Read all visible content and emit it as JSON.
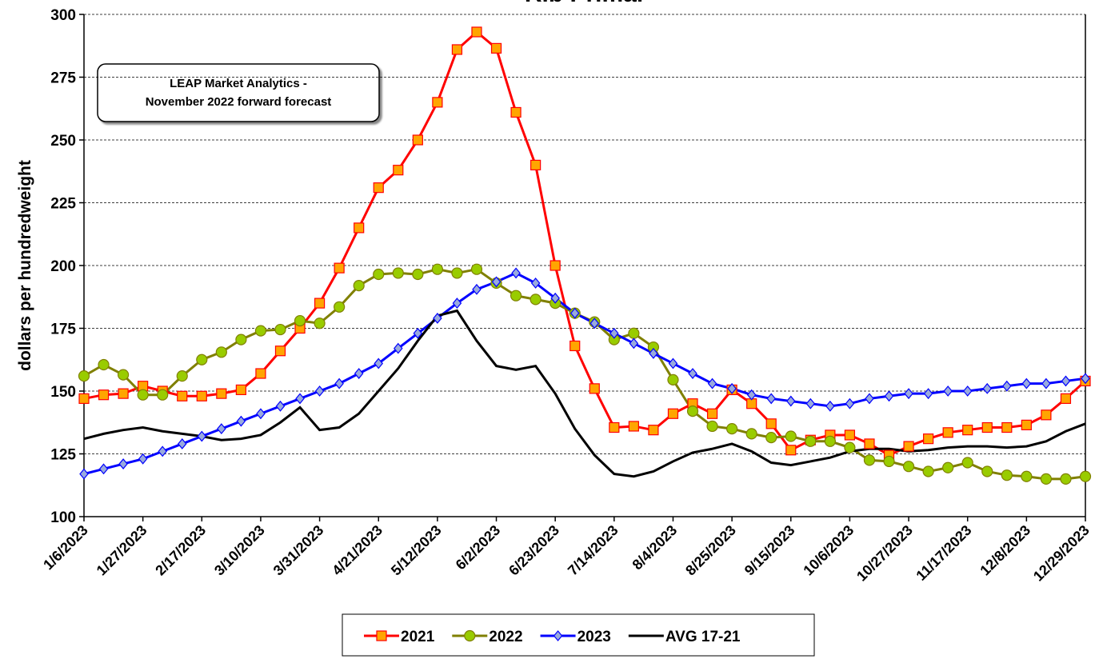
{
  "chart_data": {
    "type": "line",
    "title": "Rib Primal",
    "y_label": "dollars per hundredweight",
    "annotation": [
      "LEAP Market Analytics -",
      "November 2022 forward forecast"
    ],
    "categories": [
      "1/6/2023",
      null,
      null,
      "1/27/2023",
      null,
      null,
      "2/17/2023",
      null,
      null,
      "3/10/2023",
      null,
      null,
      "3/31/2023",
      null,
      null,
      "4/21/2023",
      null,
      null,
      "5/12/2023",
      null,
      null,
      "6/2/2023",
      null,
      null,
      "6/23/2023",
      null,
      null,
      "7/14/2023",
      null,
      null,
      "8/4/2023",
      null,
      null,
      "8/25/2023",
      null,
      null,
      "9/15/2023",
      null,
      null,
      "10/6/2023",
      null,
      null,
      "10/27/2023",
      null,
      null,
      "11/17/2023",
      null,
      null,
      "12/8/2023",
      null,
      null,
      "12/29/2023"
    ],
    "series": [
      {
        "name": "2021",
        "color": "#ff0000",
        "marker": "square",
        "marker_fill": "#ffa500",
        "values": [
          147,
          148.5,
          149,
          152,
          150,
          148,
          148,
          149,
          150.5,
          157,
          166,
          175,
          185,
          199,
          215,
          231,
          238,
          250,
          265,
          286,
          293,
          286.5,
          261,
          240,
          200,
          168,
          151,
          135.5,
          136,
          134.5,
          141,
          145,
          141,
          150.5,
          145,
          137,
          126.5,
          130.5,
          132.5,
          132.5,
          129,
          124.5,
          128,
          131,
          133.5,
          134.5,
          135.5,
          135.5,
          136.5,
          140.5,
          147,
          154
        ]
      },
      {
        "name": "2022",
        "color": "#808000",
        "marker": "circle",
        "marker_fill": "#99cc00",
        "values": [
          156,
          160.5,
          156.5,
          148.5,
          148.5,
          156,
          162.5,
          165.5,
          170.5,
          174,
          174.5,
          178,
          177,
          183.5,
          192,
          196.5,
          197,
          196.5,
          198.5,
          197,
          198.5,
          193,
          188,
          186.5,
          185,
          181,
          177.5,
          170.5,
          173,
          167.5,
          154.5,
          142,
          136,
          135,
          133,
          131.5,
          132,
          130,
          130,
          127.5,
          122.5,
          122,
          120,
          118,
          119.5,
          121.5,
          118,
          116.5,
          116,
          115,
          115,
          116
        ]
      },
      {
        "name": "2023",
        "color": "#0000ff",
        "marker": "diamond",
        "marker_fill": "#99aadd",
        "values": [
          117,
          119,
          121,
          123,
          126,
          129,
          132,
          135,
          138,
          141,
          144,
          147,
          150,
          153,
          157,
          161,
          167,
          173,
          179,
          185,
          190.5,
          193.5,
          197,
          193,
          187,
          181,
          177,
          173,
          169,
          165,
          161,
          157,
          153,
          151,
          148.5,
          147,
          146,
          145,
          144,
          145,
          147,
          148,
          149,
          149,
          150,
          150,
          151,
          152,
          153,
          153,
          154,
          155
        ]
      },
      {
        "name": "AVG 17-21",
        "color": "#000000",
        "marker": "none",
        "values": [
          131,
          133,
          134.5,
          135.5,
          134,
          133,
          132,
          130.5,
          131,
          132.5,
          137.5,
          143.5,
          134.5,
          135.5,
          141,
          150,
          159,
          170,
          180,
          182,
          170,
          160,
          158.5,
          160,
          149,
          135,
          124.5,
          117,
          116,
          118,
          122,
          125.5,
          127,
          129,
          126,
          121.5,
          120.5,
          122,
          123.5,
          126,
          127,
          127,
          126,
          126.5,
          127.5,
          128,
          128,
          127.5,
          128,
          130,
          134,
          137
        ]
      }
    ],
    "ylim": [
      100,
      300
    ],
    "yticks": [
      100,
      125,
      150,
      175,
      200,
      225,
      250,
      275,
      300
    ],
    "grid": true,
    "legend": "bottom"
  }
}
